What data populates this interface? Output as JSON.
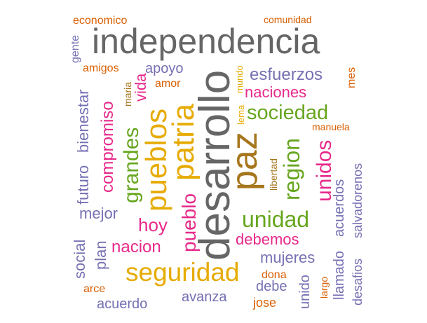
{
  "colors": {
    "orange": "#D95F02",
    "purple": "#7570B3",
    "pink": "#E7298A",
    "green": "#66A61E",
    "gold": "#E6AB02",
    "brown": "#A6761D",
    "gray": "#666666"
  },
  "words": [
    {
      "text": "independencia",
      "color": "gray"
    },
    {
      "text": "desarrollo",
      "color": "gray"
    },
    {
      "text": "paz",
      "color": "brown"
    },
    {
      "text": "patria",
      "color": "gold"
    },
    {
      "text": "pueblos",
      "color": "gold"
    },
    {
      "text": "seguridad",
      "color": "gold"
    },
    {
      "text": "unidad",
      "color": "green"
    },
    {
      "text": "sociedad",
      "color": "green"
    },
    {
      "text": "region",
      "color": "green"
    },
    {
      "text": "grandes",
      "color": "green"
    },
    {
      "text": "unidos",
      "color": "pink"
    },
    {
      "text": "naciones",
      "color": "pink"
    },
    {
      "text": "debemos",
      "color": "pink"
    },
    {
      "text": "pueblo",
      "color": "pink"
    },
    {
      "text": "hoy",
      "color": "pink"
    },
    {
      "text": "nacion",
      "color": "pink"
    },
    {
      "text": "compromiso",
      "color": "pink"
    },
    {
      "text": "vida",
      "color": "pink"
    },
    {
      "text": "esfuerzos",
      "color": "purple"
    },
    {
      "text": "apoyo",
      "color": "purple"
    },
    {
      "text": "mejor",
      "color": "purple"
    },
    {
      "text": "mujeres",
      "color": "purple"
    },
    {
      "text": "social",
      "color": "purple"
    },
    {
      "text": "plan",
      "color": "purple"
    },
    {
      "text": "futuro",
      "color": "purple"
    },
    {
      "text": "bienestar",
      "color": "purple"
    },
    {
      "text": "gente",
      "color": "purple"
    },
    {
      "text": "avanza",
      "color": "purple"
    },
    {
      "text": "acuerdo",
      "color": "purple"
    },
    {
      "text": "debe",
      "color": "purple"
    },
    {
      "text": "unido",
      "color": "purple"
    },
    {
      "text": "llamado",
      "color": "purple"
    },
    {
      "text": "acuerdos",
      "color": "purple"
    },
    {
      "text": "desafios",
      "color": "purple"
    },
    {
      "text": "salvadorenos",
      "color": "purple"
    },
    {
      "text": "mundo",
      "color": "gold"
    },
    {
      "text": "lema",
      "color": "gold"
    },
    {
      "text": "maria",
      "color": "brown"
    },
    {
      "text": "libertad",
      "color": "brown"
    },
    {
      "text": "manuela",
      "color": "orange"
    },
    {
      "text": "economico",
      "color": "orange"
    },
    {
      "text": "comunidad",
      "color": "orange"
    },
    {
      "text": "amigos",
      "color": "orange"
    },
    {
      "text": "amor",
      "color": "orange"
    },
    {
      "text": "mes",
      "color": "orange"
    },
    {
      "text": "dona",
      "color": "orange"
    },
    {
      "text": "arce",
      "color": "orange"
    },
    {
      "text": "jose",
      "color": "orange"
    },
    {
      "text": "largo",
      "color": "orange"
    }
  ]
}
